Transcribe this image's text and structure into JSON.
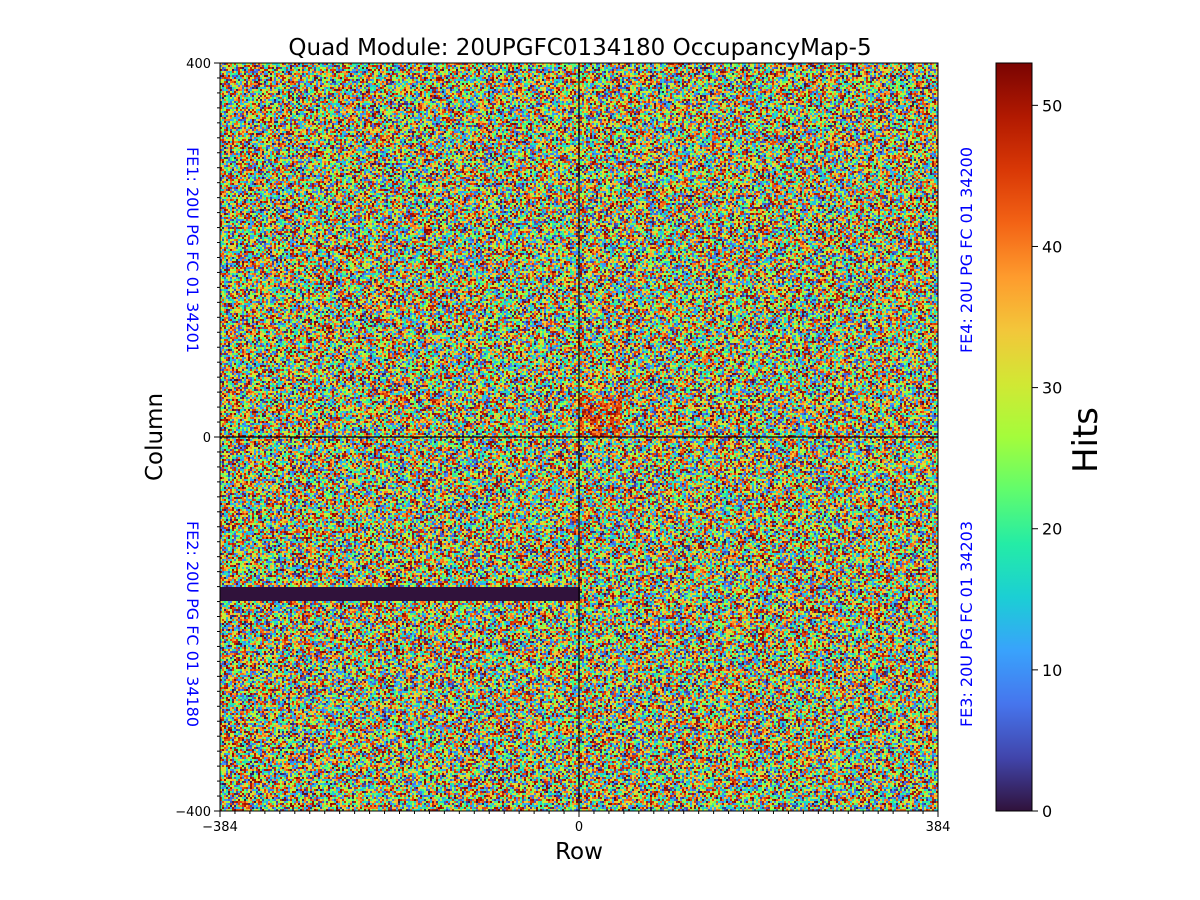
{
  "chart_data": {
    "type": "heatmap",
    "title": "Quad Module: 20UPGFC0134180 OccupancyMap-5",
    "xlabel": "Row",
    "ylabel": "Column",
    "xlim": [
      -384,
      384
    ],
    "ylim": [
      -400,
      400
    ],
    "x_ticks": [
      -384,
      0,
      384
    ],
    "x_tick_labels": [
      "−384",
      "0",
      "384"
    ],
    "y_ticks": [
      400,
      0,
      -400
    ],
    "y_tick_labels": [
      "400",
      "0",
      "−400"
    ],
    "colorbar": {
      "label": "Hits",
      "range": [
        0,
        53
      ],
      "ticks": [
        0,
        10,
        20,
        30,
        40,
        50
      ],
      "tick_labels": [
        "0",
        "10",
        "20",
        "30",
        "40",
        "50"
      ],
      "colormap": "turbo"
    },
    "frontends": [
      {
        "label": "FE1: 20U PG FC 01 34201",
        "quadrant": "top-left"
      },
      {
        "label": "FE2: 20U PG FC 01 34180",
        "quadrant": "bottom-left"
      },
      {
        "label": "FE3: 20U PG FC 01 34203",
        "quadrant": "bottom-right"
      },
      {
        "label": "FE4: 20U PG FC 01 34200",
        "quadrant": "top-right"
      }
    ],
    "dead_region": {
      "x": [
        -384,
        0
      ],
      "y": [
        -175,
        -160
      ],
      "value": 0
    },
    "hot_spot": {
      "x": [
        0,
        45
      ],
      "y": [
        0,
        45
      ],
      "typical_value": 45
    },
    "grid": false,
    "quadrant_divider_lines": {
      "x": 0,
      "y": 0
    }
  },
  "colors": {
    "fe_label": "#0000ff",
    "divider": "#000000",
    "dead_pixels": "#30123b"
  }
}
